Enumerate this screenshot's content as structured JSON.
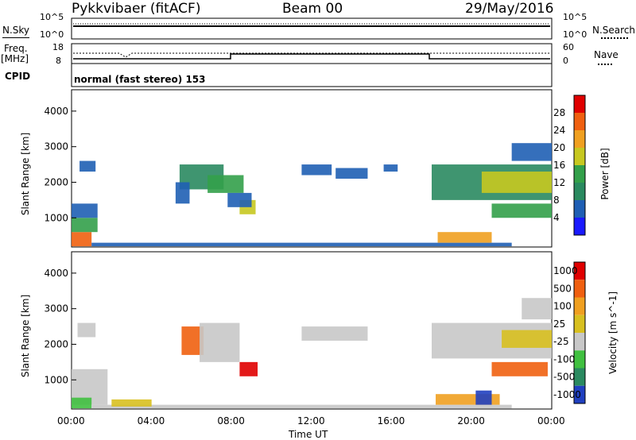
{
  "header": {
    "station": "Pykkvibaer (fitACF)",
    "beam": "Beam 00",
    "date": "29/May/2016"
  },
  "panels": {
    "nsky_label": "N.Sky",
    "nsky_ticks": [
      "10^5",
      "10^0"
    ],
    "nsearch_label": "N.Search",
    "nsearch_ticks": [
      "10^5",
      "10^0"
    ],
    "freq_label_top": "Freq.",
    "freq_label_unit": "[MHz]",
    "freq_ticks": [
      "18",
      "8"
    ],
    "nave_label": "Nave",
    "nave_ticks": [
      "60",
      "0"
    ],
    "cpid_label": "CPID",
    "cpid_text": "normal (fast stereo) 153"
  },
  "x_axis": {
    "label": "Time UT",
    "ticks": [
      "00:00",
      "04:00",
      "08:00",
      "12:00",
      "16:00",
      "20:00",
      "00:00"
    ]
  },
  "chart_data": [
    {
      "type": "heatmap",
      "name": "Power",
      "ylabel": "Slant Range [km]",
      "yticks": [
        "1000",
        "2000",
        "3000",
        "4000"
      ],
      "ylim": [
        180,
        4600
      ],
      "xlim": [
        0,
        24
      ],
      "colorbar_label": "Power [dB]",
      "colorbar_ticks": [
        "4",
        "8",
        "12",
        "16",
        "20",
        "24",
        "28"
      ],
      "colors": [
        "#1a1aff",
        "#1f5fb4",
        "#2a8a60",
        "#33a04a",
        "#c7c820",
        "#f0a020",
        "#f06010",
        "#e00000"
      ],
      "patches": [
        {
          "t0": 0.0,
          "t1": 1.0,
          "r0": 200,
          "r1": 600,
          "level": 6
        },
        {
          "t0": 0.0,
          "t1": 1.3,
          "r0": 600,
          "r1": 1000,
          "level": 3
        },
        {
          "t0": 0.0,
          "t1": 1.3,
          "r0": 1000,
          "r1": 1400,
          "level": 1
        },
        {
          "t0": 1.0,
          "t1": 22.0,
          "r0": 200,
          "r1": 300,
          "level": 1
        },
        {
          "t0": 0.4,
          "t1": 1.2,
          "r0": 2300,
          "r1": 2600,
          "level": 1
        },
        {
          "t0": 5.4,
          "t1": 7.6,
          "r0": 1800,
          "r1": 2500,
          "level": 2
        },
        {
          "t0": 6.8,
          "t1": 8.6,
          "r0": 1700,
          "r1": 2200,
          "level": 3
        },
        {
          "t0": 8.4,
          "t1": 9.2,
          "r0": 1100,
          "r1": 1500,
          "level": 4
        },
        {
          "t0": 7.8,
          "t1": 9.0,
          "r0": 1300,
          "r1": 1700,
          "level": 1
        },
        {
          "t0": 5.2,
          "t1": 5.9,
          "r0": 1400,
          "r1": 2000,
          "level": 1
        },
        {
          "t0": 11.5,
          "t1": 13.0,
          "r0": 2200,
          "r1": 2500,
          "level": 1
        },
        {
          "t0": 13.2,
          "t1": 14.8,
          "r0": 2100,
          "r1": 2400,
          "level": 1
        },
        {
          "t0": 15.6,
          "t1": 16.3,
          "r0": 2300,
          "r1": 2500,
          "level": 1
        },
        {
          "t0": 18.0,
          "t1": 24.0,
          "r0": 1500,
          "r1": 2500,
          "level": 2
        },
        {
          "t0": 20.5,
          "t1": 24.0,
          "r0": 1700,
          "r1": 2300,
          "level": 4
        },
        {
          "t0": 18.3,
          "t1": 21.0,
          "r0": 300,
          "r1": 600,
          "level": 5
        },
        {
          "t0": 21.0,
          "t1": 24.0,
          "r0": 1000,
          "r1": 1400,
          "level": 3
        },
        {
          "t0": 22.0,
          "t1": 24.0,
          "r0": 2600,
          "r1": 3100,
          "level": 1
        }
      ]
    },
    {
      "type": "heatmap",
      "name": "Velocity",
      "ylabel": "Slant Range [km]",
      "yticks": [
        "1000",
        "2000",
        "3000",
        "4000"
      ],
      "ylim": [
        180,
        4600
      ],
      "xlim": [
        0,
        24
      ],
      "colorbar_label": "Velocity [m s^-1]",
      "colorbar_ticks": [
        "1000",
        "500",
        "100",
        "25",
        "-25",
        "-100",
        "-500",
        "-1000"
      ],
      "colors": [
        "#2040c0",
        "#2a8a60",
        "#40c040",
        "#c8c8c8",
        "#d8c020",
        "#f0a020",
        "#f06010",
        "#e00000"
      ],
      "patches": [
        {
          "t0": 0.0,
          "t1": 1.8,
          "r0": 300,
          "r1": 1300,
          "level": 3
        },
        {
          "t0": 0.0,
          "t1": 1.0,
          "r0": 200,
          "r1": 500,
          "level": 2
        },
        {
          "t0": 1.0,
          "t1": 22.0,
          "r0": 200,
          "r1": 300,
          "level": 3
        },
        {
          "t0": 2.0,
          "t1": 4.0,
          "r0": 250,
          "r1": 450,
          "level": 4
        },
        {
          "t0": 0.3,
          "t1": 1.2,
          "r0": 2200,
          "r1": 2600,
          "level": 3
        },
        {
          "t0": 5.5,
          "t1": 6.6,
          "r0": 1700,
          "r1": 2500,
          "level": 6
        },
        {
          "t0": 6.4,
          "t1": 8.4,
          "r0": 1500,
          "r1": 2600,
          "level": 3
        },
        {
          "t0": 8.4,
          "t1": 9.3,
          "r0": 1100,
          "r1": 1500,
          "level": 7
        },
        {
          "t0": 11.5,
          "t1": 14.8,
          "r0": 2100,
          "r1": 2500,
          "level": 3
        },
        {
          "t0": 18.0,
          "t1": 24.0,
          "r0": 1600,
          "r1": 2600,
          "level": 3
        },
        {
          "t0": 21.5,
          "t1": 24.0,
          "r0": 1900,
          "r1": 2400,
          "level": 4
        },
        {
          "t0": 21.0,
          "t1": 23.8,
          "r0": 1100,
          "r1": 1500,
          "level": 6
        },
        {
          "t0": 18.2,
          "t1": 21.4,
          "r0": 300,
          "r1": 600,
          "level": 5
        },
        {
          "t0": 20.2,
          "t1": 21.0,
          "r0": 300,
          "r1": 700,
          "level": 0
        },
        {
          "t0": 22.5,
          "t1": 24.0,
          "r0": 2700,
          "r1": 3300,
          "level": 3
        }
      ]
    }
  ]
}
